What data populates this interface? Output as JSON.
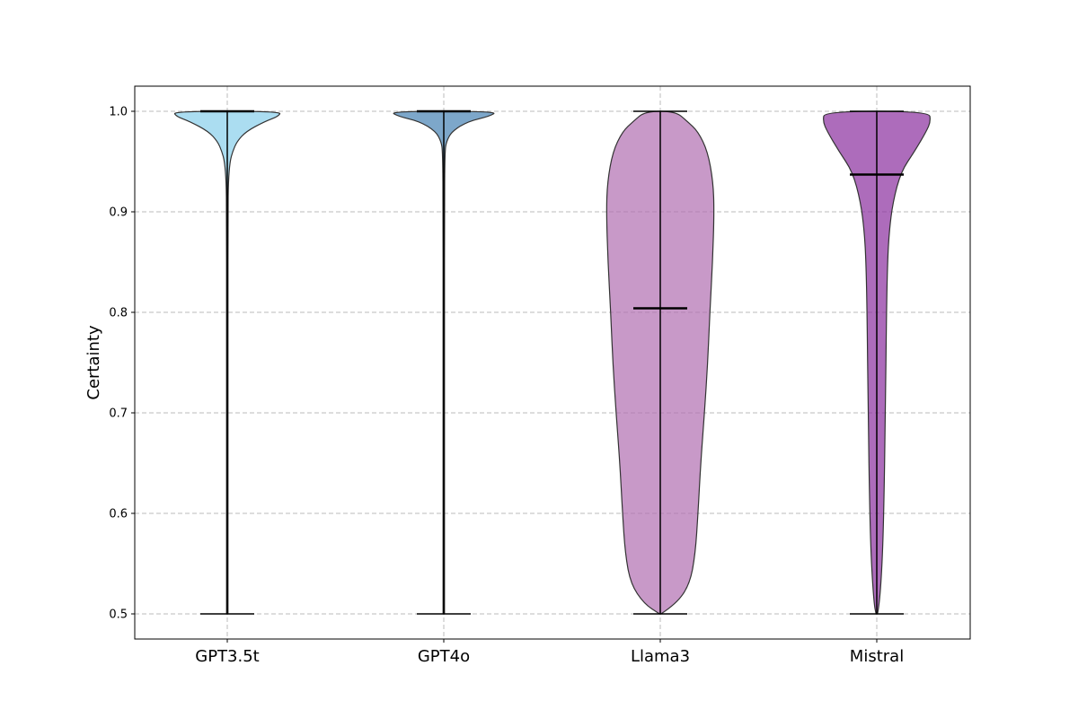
{
  "chart_data": {
    "type": "violin",
    "title": "",
    "xlabel": "",
    "ylabel": "Certainty",
    "ylim": [
      0.475,
      1.025
    ],
    "yticks": [
      0.5,
      0.6,
      0.7,
      0.8,
      0.9,
      1.0
    ],
    "ytick_labels": [
      "0.5",
      "0.6",
      "0.7",
      "0.8",
      "0.9",
      "1.0"
    ],
    "grid": true,
    "categories": [
      "GPT3.5t",
      "GPT4o",
      "Llama3",
      "Mistral"
    ],
    "series": [
      {
        "name": "GPT3.5t",
        "color": "#87ceeb",
        "min": 0.5,
        "max": 1.0,
        "median": 1.0,
        "density_profile": [
          [
            0.5,
            0.004
          ],
          [
            0.6,
            0.008
          ],
          [
            0.7,
            0.01
          ],
          [
            0.8,
            0.012
          ],
          [
            0.9,
            0.014
          ],
          [
            0.93,
            0.02
          ],
          [
            0.95,
            0.05
          ],
          [
            0.96,
            0.1
          ],
          [
            0.97,
            0.18
          ],
          [
            0.98,
            0.35
          ],
          [
            0.99,
            0.7
          ],
          [
            0.995,
            0.95
          ],
          [
            1.0,
            1.0
          ]
        ]
      },
      {
        "name": "GPT4o",
        "color": "#4682b4",
        "min": 0.5,
        "max": 1.0,
        "median": 1.0,
        "density_profile": [
          [
            0.5,
            0.01
          ],
          [
            0.6,
            0.01
          ],
          [
            0.7,
            0.01
          ],
          [
            0.8,
            0.01
          ],
          [
            0.9,
            0.01
          ],
          [
            0.96,
            0.02
          ],
          [
            0.97,
            0.05
          ],
          [
            0.98,
            0.15
          ],
          [
            0.99,
            0.45
          ],
          [
            0.995,
            0.85
          ],
          [
            1.0,
            1.0
          ]
        ]
      },
      {
        "name": "Llama3",
        "color": "#b06db0",
        "min": 0.5,
        "max": 1.0,
        "median": 0.804,
        "density_profile": [
          [
            0.5,
            0.0
          ],
          [
            0.51,
            0.3
          ],
          [
            0.53,
            0.55
          ],
          [
            0.56,
            0.65
          ],
          [
            0.6,
            0.7
          ],
          [
            0.65,
            0.75
          ],
          [
            0.7,
            0.82
          ],
          [
            0.75,
            0.88
          ],
          [
            0.8,
            0.92
          ],
          [
            0.85,
            0.97
          ],
          [
            0.9,
            1.0
          ],
          [
            0.93,
            0.98
          ],
          [
            0.96,
            0.88
          ],
          [
            0.98,
            0.7
          ],
          [
            0.99,
            0.5
          ],
          [
            1.0,
            0.28
          ]
        ]
      },
      {
        "name": "Mistral",
        "color": "#8a2e9e",
        "min": 0.5,
        "max": 1.0,
        "median": 0.937,
        "density_profile": [
          [
            0.5,
            0.0
          ],
          [
            0.51,
            0.05
          ],
          [
            0.55,
            0.1
          ],
          [
            0.6,
            0.13
          ],
          [
            0.7,
            0.16
          ],
          [
            0.8,
            0.18
          ],
          [
            0.85,
            0.2
          ],
          [
            0.88,
            0.23
          ],
          [
            0.91,
            0.3
          ],
          [
            0.94,
            0.45
          ],
          [
            0.96,
            0.7
          ],
          [
            0.98,
            0.92
          ],
          [
            0.99,
            1.0
          ],
          [
            1.0,
            0.97
          ]
        ]
      }
    ]
  }
}
